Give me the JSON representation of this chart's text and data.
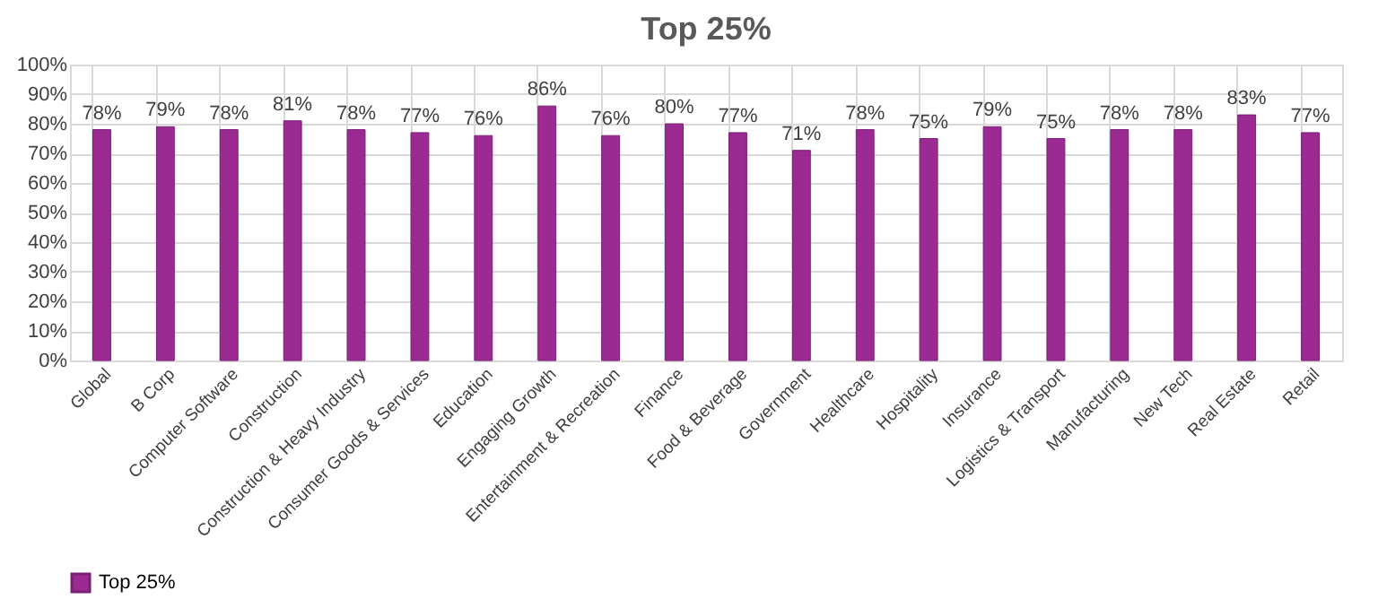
{
  "chart_data": {
    "type": "bar",
    "title": "Top 25%",
    "categories": [
      "Global",
      "B Corp",
      "Computer Software",
      "Construction",
      "Construction & Heavy Industry",
      "Consumer Goods & Services",
      "Education",
      "Engaging Growth",
      "Entertainment & Recreation",
      "Finance",
      "Food & Beverage",
      "Government",
      "Healthcare",
      "Hospitality",
      "Insurance",
      "Logistics & Transport",
      "Manufacturing",
      "New Tech",
      "Real Estate",
      "Retail"
    ],
    "series": [
      {
        "name": "Top 25%",
        "color": "#9b2a93",
        "values": [
          78,
          79,
          78,
          81,
          78,
          77,
          76,
          86,
          76,
          80,
          77,
          71,
          78,
          75,
          79,
          75,
          78,
          78,
          83,
          77
        ],
        "value_labels": [
          "78%",
          "79%",
          "78%",
          "81%",
          "78%",
          "77%",
          "76%",
          "86%",
          "76%",
          "80%",
          "77%",
          "71%",
          "78%",
          "75%",
          "79%",
          "75%",
          "78%",
          "78%",
          "83%",
          "77%"
        ]
      }
    ],
    "ylim": [
      0,
      100
    ],
    "yticks": [
      {
        "value": 0,
        "label": "0%"
      },
      {
        "value": 10,
        "label": "10%"
      },
      {
        "value": 20,
        "label": "20%"
      },
      {
        "value": 30,
        "label": "30%"
      },
      {
        "value": 40,
        "label": "40%"
      },
      {
        "value": 50,
        "label": "50%"
      },
      {
        "value": 60,
        "label": "60%"
      },
      {
        "value": 70,
        "label": "70%"
      },
      {
        "value": 80,
        "label": "80%"
      },
      {
        "value": 90,
        "label": "90%"
      },
      {
        "value": 100,
        "label": "100%"
      }
    ],
    "grid": true,
    "legend": "bottom"
  }
}
